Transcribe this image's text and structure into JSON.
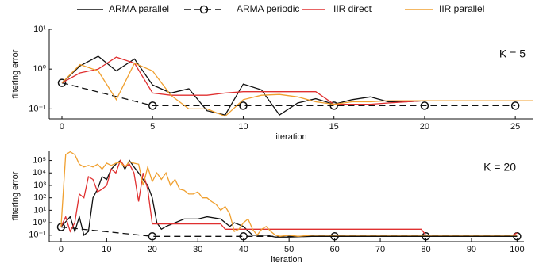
{
  "chart_data": [
    {
      "type": "line",
      "annotation": "K = 5",
      "xlabel": "iteration",
      "ylabel": "filtering error",
      "log_y": true,
      "xlim": [
        -0.7,
        26
      ],
      "xticks": [
        0,
        5,
        10,
        15,
        20,
        25
      ],
      "ylim": [
        0.056,
        10
      ],
      "yticks": [
        {
          "value": 0.1,
          "label": "10⁻¹"
        },
        {
          "value": 1,
          "label": "10⁰"
        },
        {
          "value": 10,
          "label": "10¹"
        }
      ],
      "series": [
        {
          "name": "ARMA parallel",
          "color": "#111111",
          "linestyle": "solid",
          "x": [
            0,
            1,
            2,
            3,
            4,
            5,
            6,
            7,
            8,
            9,
            10,
            11,
            12,
            13,
            14,
            15,
            16,
            17,
            18,
            19,
            20,
            21,
            22,
            23,
            24,
            25,
            26
          ],
          "values": [
            0.45,
            1.2,
            2.1,
            0.9,
            1.8,
            0.4,
            0.25,
            0.32,
            0.09,
            0.07,
            0.42,
            0.3,
            0.07,
            0.14,
            0.18,
            0.13,
            0.17,
            0.2,
            0.15,
            0.15,
            0.16,
            0.16,
            0.16,
            0.16,
            0.16,
            0.16,
            0.16
          ]
        },
        {
          "name": "ARMA periodic",
          "color": "#111111",
          "linestyle": "dashed",
          "marker": "o",
          "x": [
            0,
            5,
            10,
            15,
            20,
            25
          ],
          "values": [
            0.45,
            0.12,
            0.12,
            0.12,
            0.12,
            0.12
          ]
        },
        {
          "name": "IIR direct",
          "color": "#e03030",
          "linestyle": "solid",
          "x": [
            0,
            1,
            2,
            3,
            4,
            5,
            6,
            7,
            8,
            9,
            10,
            11,
            12,
            13,
            14,
            15,
            16,
            17,
            18,
            19,
            20,
            21,
            22,
            23,
            24,
            25,
            26
          ],
          "values": [
            0.45,
            0.8,
            1.0,
            2.0,
            1.4,
            0.25,
            0.22,
            0.22,
            0.22,
            0.25,
            0.27,
            0.27,
            0.27,
            0.27,
            0.27,
            0.13,
            0.13,
            0.13,
            0.14,
            0.15,
            0.16,
            0.16,
            0.16,
            0.16,
            0.16,
            0.16,
            0.16
          ]
        },
        {
          "name": "IIR parallel",
          "color": "#f0a030",
          "linestyle": "solid",
          "x": [
            0,
            1,
            2,
            3,
            4,
            5,
            6,
            7,
            8,
            9,
            10,
            11,
            12,
            13,
            14,
            15,
            16,
            17,
            18,
            19,
            20,
            21,
            22,
            23,
            24,
            25,
            26
          ],
          "values": [
            0.45,
            1.3,
            0.9,
            0.17,
            1.4,
            0.9,
            0.22,
            0.1,
            0.1,
            0.065,
            0.17,
            0.22,
            0.23,
            0.2,
            0.15,
            0.13,
            0.15,
            0.15,
            0.16,
            0.16,
            0.16,
            0.16,
            0.16,
            0.16,
            0.16,
            0.16,
            0.16
          ]
        }
      ]
    },
    {
      "type": "line",
      "annotation": "K = 20",
      "xlabel": "iteration",
      "ylabel": "filtering error",
      "log_y": true,
      "xlim": [
        -2.6,
        101.5
      ],
      "xticks": [
        0,
        10,
        20,
        30,
        40,
        50,
        60,
        70,
        80,
        90,
        100
      ],
      "ylim": [
        0.03,
        630000
      ],
      "yticks": [
        {
          "value": 0.1,
          "label": "10⁻¹"
        },
        {
          "value": 1,
          "label": "10⁰"
        },
        {
          "value": 10,
          "label": "10¹"
        },
        {
          "value": 100,
          "label": "10²"
        },
        {
          "value": 1000,
          "label": "10³"
        },
        {
          "value": 10000,
          "label": "10⁴"
        },
        {
          "value": 100000,
          "label": "10⁵"
        }
      ],
      "series": [
        {
          "color": "#111111",
          "linestyle": "solid",
          "x": [
            0,
            2,
            3,
            4,
            5,
            6,
            7,
            8,
            9,
            10,
            11,
            12,
            13,
            14,
            15,
            16,
            17,
            18,
            19,
            20,
            21,
            22,
            23,
            25,
            27,
            30,
            32,
            35,
            37,
            38,
            40,
            42,
            45,
            47,
            50,
            55,
            60,
            100
          ],
          "values": [
            0.45,
            3,
            0.2,
            3,
            0.1,
            0.2,
            100,
            500,
            5000,
            3000,
            20000,
            50000,
            100000,
            20000,
            100000,
            30000,
            10000,
            3000,
            1000,
            100,
            1,
            0.3,
            0.5,
            1,
            2,
            2,
            3,
            2,
            0.5,
            1,
            0.5,
            0.1,
            0.1,
            0.07,
            0.07,
            0.08,
            0.08,
            0.08
          ]
        },
        {
          "color": "#111111",
          "linestyle": "dashed",
          "marker": "o",
          "x": [
            0,
            20,
            40,
            60,
            80,
            100
          ],
          "values": [
            0.45,
            0.08,
            0.08,
            0.08,
            0.08,
            0.08
          ]
        },
        {
          "color": "#e03030",
          "linestyle": "solid",
          "x": [
            0,
            1,
            2,
            3,
            4,
            5,
            6,
            7,
            8,
            9,
            10,
            11,
            12,
            13,
            14,
            15,
            16,
            17,
            18,
            19,
            20,
            21,
            25,
            35,
            36,
            60,
            79,
            80,
            99,
            100
          ],
          "values": [
            0.5,
            3,
            0.2,
            1,
            200,
            100,
            5000,
            3000,
            300,
            500,
            1000,
            20000,
            10000,
            100000,
            30000,
            50000,
            10000,
            50,
            10000,
            500,
            0.8,
            0.8,
            0.8,
            0.8,
            0.3,
            0.3,
            0.3,
            0.1,
            0.1,
            0.15
          ]
        },
        {
          "color": "#f0a030",
          "linestyle": "solid",
          "x": [
            0,
            1,
            2,
            3,
            4,
            5,
            6,
            7,
            8,
            9,
            10,
            11,
            12,
            13,
            14,
            15,
            16,
            17,
            18,
            19,
            20,
            21,
            22,
            23,
            24,
            25,
            26,
            27,
            28,
            29,
            30,
            31,
            32,
            33,
            34,
            35,
            36,
            37,
            38,
            39,
            40,
            41,
            42,
            43,
            44,
            45,
            46,
            47,
            48,
            50,
            52,
            55,
            60,
            80,
            100
          ],
          "values": [
            0.5,
            300000,
            500000,
            300000,
            50000,
            30000,
            40000,
            30000,
            50000,
            20000,
            60000,
            40000,
            60000,
            70000,
            30000,
            80000,
            60000,
            50000,
            1000,
            30000,
            2000,
            10000,
            3000,
            10000,
            1000,
            3000,
            500,
            400,
            200,
            200,
            300,
            100,
            100,
            50,
            30,
            10,
            20,
            5,
            0.2,
            0.3,
            1,
            2,
            0.3,
            0.1,
            0.3,
            0.5,
            0.2,
            0.1,
            0.08,
            0.1,
            0.08,
            0.1,
            0.1,
            0.1,
            0.1
          ]
        }
      ]
    }
  ]
}
